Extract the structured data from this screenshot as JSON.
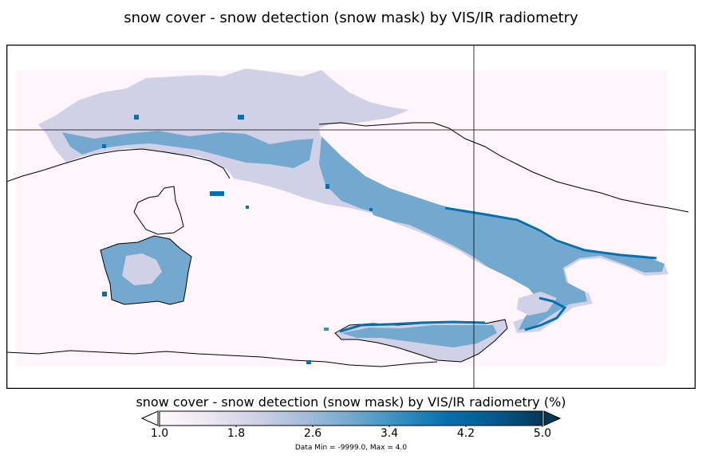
{
  "title": "snow cover - snow detection (snow mask) by VIS/IR radiometry",
  "colorbar": {
    "label": "snow cover - snow detection (snow mask) by VIS/IR radiometry (%)",
    "ticks": [
      "1.0",
      "1.8",
      "2.6",
      "3.4",
      "4.2",
      "5.0"
    ],
    "range": [
      1.0,
      5.0
    ],
    "colormap": [
      "#fff7fb",
      "#ece7f2",
      "#d0d1e6",
      "#a6bddb",
      "#74a9cf",
      "#3690c0",
      "#0570b0",
      "#045a8d",
      "#023858"
    ],
    "extend": "both"
  },
  "data_info": "Data Min = -9999.0, Max = 4.0",
  "map": {
    "region": "Italy",
    "background_color": "#fff5fa",
    "dominant_fill_color": "#d0d1e6",
    "secondary_fill_color": "#74a9cf",
    "accent_fill_color": "#0570b0",
    "crosshair": true
  }
}
